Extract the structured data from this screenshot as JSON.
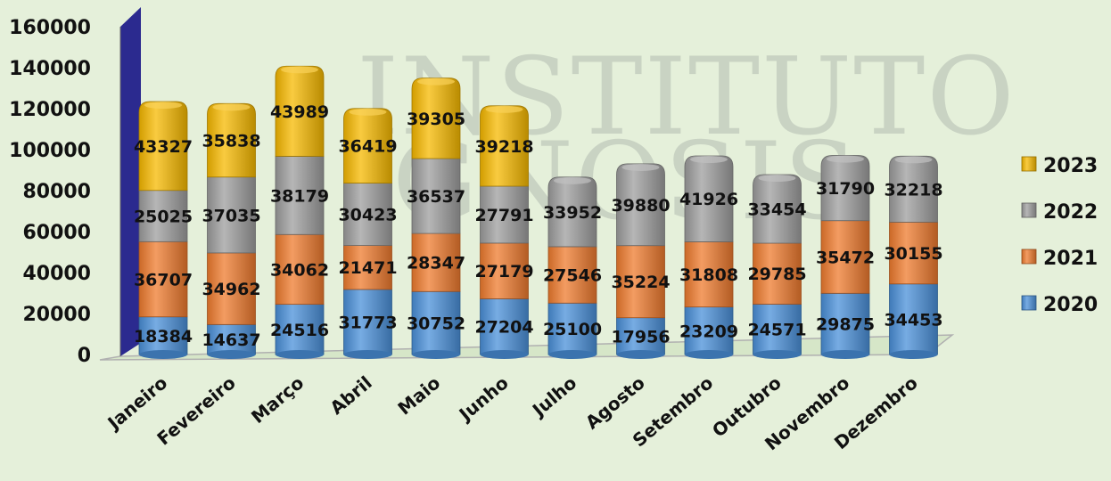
{
  "watermark": {
    "line1": "INSTITUTO",
    "line2": "GNOSIS"
  },
  "chart_data": {
    "type": "bar",
    "stacked": true,
    "style": "3d-cylinder",
    "title": "",
    "xlabel": "",
    "ylabel": "",
    "ylim": [
      0,
      160000
    ],
    "yticks": [
      0,
      20000,
      40000,
      60000,
      80000,
      100000,
      120000,
      140000,
      160000
    ],
    "grid": false,
    "legend_position": "right",
    "categories": [
      "Janeiro",
      "Fevereiro",
      "Março",
      "Abril",
      "Maio",
      "Junho",
      "Julho",
      "Agosto",
      "Setembro",
      "Outubro",
      "Novembro",
      "Dezembro"
    ],
    "series": [
      {
        "name": "2020",
        "color": "#4a90d9",
        "values": [
          18384,
          14637,
          24516,
          31773,
          30752,
          27204,
          25100,
          17956,
          23209,
          24571,
          29875,
          34453
        ]
      },
      {
        "name": "2021",
        "color": "#ef7b2e",
        "values": [
          36707,
          34962,
          34062,
          21471,
          28347,
          27179,
          27546,
          35224,
          31808,
          29785,
          35472,
          30155
        ]
      },
      {
        "name": "2022",
        "color": "#9e9e9e",
        "values": [
          25025,
          37035,
          38179,
          30423,
          36537,
          27791,
          33952,
          39880,
          41926,
          33454,
          31790,
          32218
        ]
      },
      {
        "name": "2023",
        "color": "#f7b900",
        "values": [
          43327,
          35838,
          43989,
          36419,
          39305,
          39218,
          null,
          null,
          null,
          null,
          null,
          null
        ]
      }
    ]
  }
}
